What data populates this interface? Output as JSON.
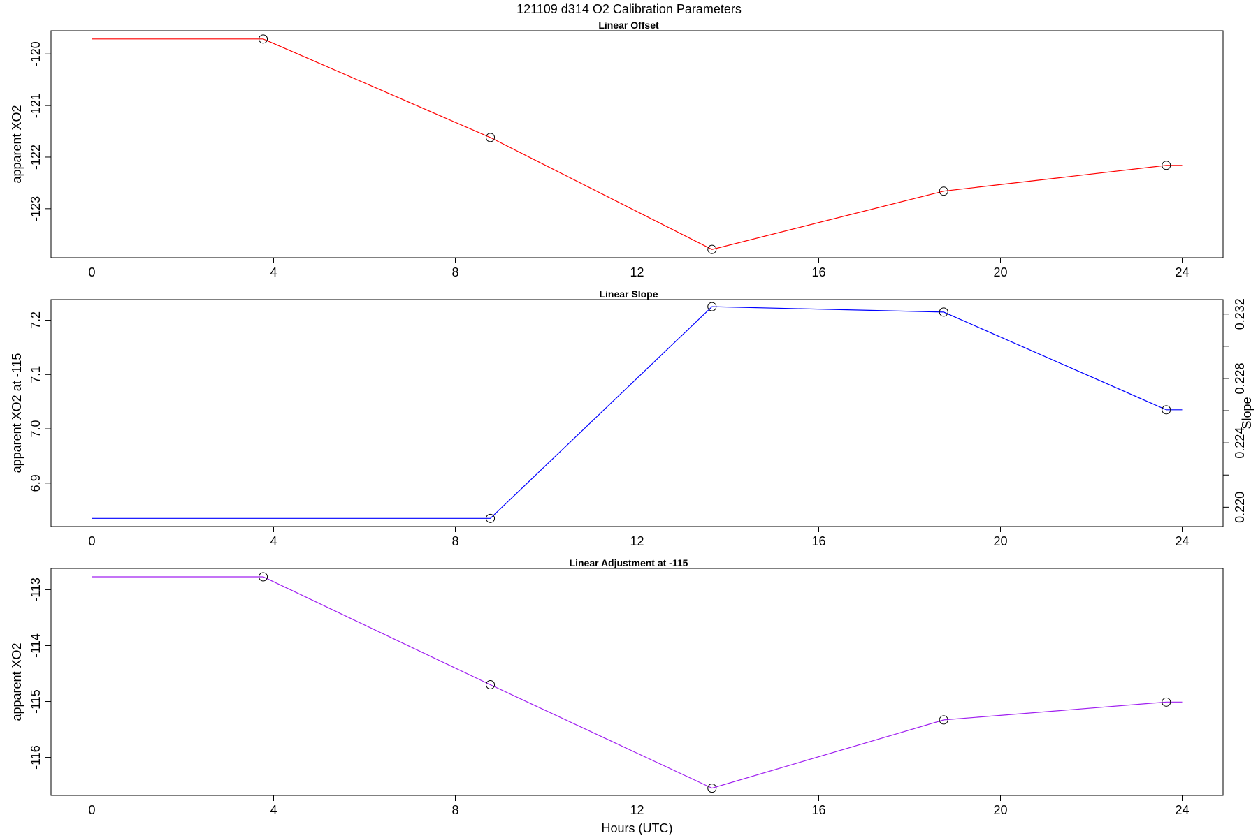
{
  "title": "121109   d314   O2 Calibration Parameters",
  "chart_data": [
    {
      "type": "line",
      "title": "Linear Offset",
      "ylabel": "apparent XO2",
      "xlabel": "",
      "color": "#ff0000",
      "xlim": [
        -0.9,
        24.9
      ],
      "ylim": [
        -123.95,
        -119.55
      ],
      "x_ticks": [
        0,
        4,
        8,
        12,
        16,
        20,
        24
      ],
      "y_ticks": [
        -120,
        -121,
        -122,
        -123
      ],
      "series": [
        {
          "x": [
            0,
            3.77,
            8.77,
            13.65,
            18.75,
            23.65,
            24
          ],
          "y": [
            -119.71,
            -119.71,
            -121.62,
            -123.79,
            -122.66,
            -122.16,
            -122.16
          ],
          "markers": [
            1,
            2,
            3,
            4,
            5
          ]
        }
      ]
    },
    {
      "type": "line",
      "title": "Linear Slope",
      "ylabel": "apparent XO2 at -115",
      "y2label": "Slope",
      "xlabel": "",
      "color": "#0000ff",
      "xlim": [
        -0.9,
        24.9
      ],
      "ylim": [
        6.82,
        7.238
      ],
      "x_ticks": [
        0,
        4,
        8,
        12,
        16,
        20,
        24
      ],
      "y_ticks": [
        6.9,
        7.0,
        7.1,
        7.2
      ],
      "y2lim": [
        0.2188,
        0.2329
      ],
      "y2_ticks": [
        0.22,
        0.224,
        0.228,
        0.232
      ],
      "series": [
        {
          "x": [
            0,
            8.77,
            13.65,
            18.75,
            23.65,
            24
          ],
          "y": [
            6.835,
            6.835,
            7.225,
            7.215,
            7.035,
            7.035
          ],
          "markers": [
            1,
            2,
            3,
            4
          ]
        }
      ]
    },
    {
      "type": "line",
      "title": "Linear Adjustment at -115",
      "ylabel": "apparent XO2",
      "xlabel": "Hours (UTC)",
      "color": "#a020f0",
      "xlim": [
        -0.9,
        24.9
      ],
      "ylim": [
        -116.68,
        -112.62
      ],
      "x_ticks": [
        0,
        4,
        8,
        12,
        16,
        20,
        24
      ],
      "y_ticks": [
        -113,
        -114,
        -115,
        -116
      ],
      "series": [
        {
          "x": [
            0,
            3.77,
            8.77,
            13.65,
            18.75,
            23.65,
            24
          ],
          "y": [
            -112.77,
            -112.77,
            -114.7,
            -116.55,
            -115.33,
            -115.01,
            -115.01
          ],
          "markers": [
            1,
            2,
            3,
            4,
            5
          ]
        }
      ]
    }
  ]
}
